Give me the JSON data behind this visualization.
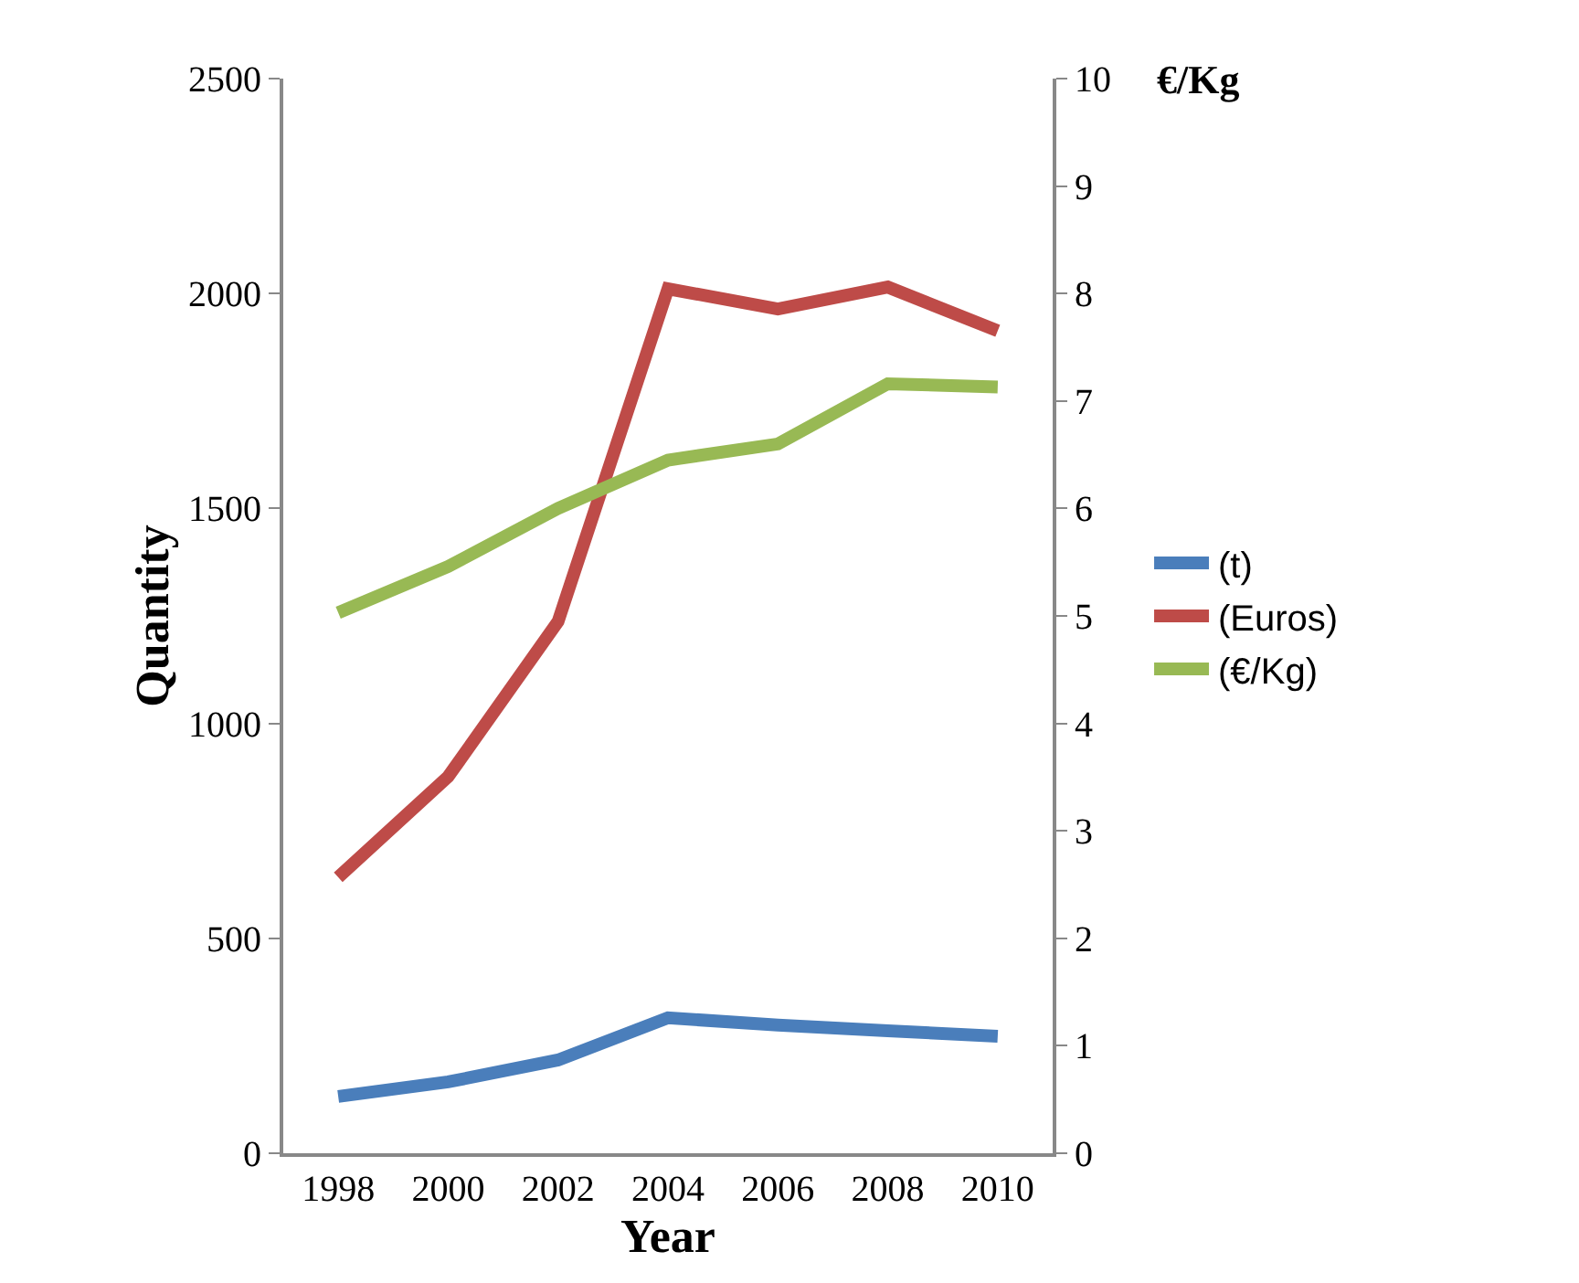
{
  "chart_data": {
    "type": "line",
    "xlabel": "Year",
    "ylabel": "Quantity",
    "y2label": "€/Kg",
    "categories": [
      "1998",
      "2000",
      "2002",
      "2004",
      "2006",
      "2008",
      "2010"
    ],
    "series": [
      {
        "name": "(t)",
        "color": "#4a7ebb",
        "values": [
          132,
          166,
          217,
          315,
          298,
          285,
          272
        ]
      },
      {
        "name": "(Euros)",
        "color": "#be4b48",
        "values": [
          642,
          876,
          1237,
          2011,
          1964,
          2015,
          1913
        ]
      },
      {
        "name": "(€/Kg)",
        "color": "#98b954",
        "axis": "y2",
        "values": [
          5.03,
          5.46,
          6.0,
          6.45,
          6.6,
          7.16,
          7.13
        ]
      }
    ],
    "ylim": [
      0,
      2500
    ],
    "yticks": [
      0,
      500,
      1000,
      1500,
      2000,
      2500
    ],
    "y2lim": [
      0,
      10
    ],
    "y2ticks": [
      0,
      1,
      2,
      3,
      4,
      5,
      6,
      7,
      8,
      9,
      10
    ],
    "grid": false,
    "legend": "right",
    "marker": "none",
    "line_style": "solid"
  }
}
